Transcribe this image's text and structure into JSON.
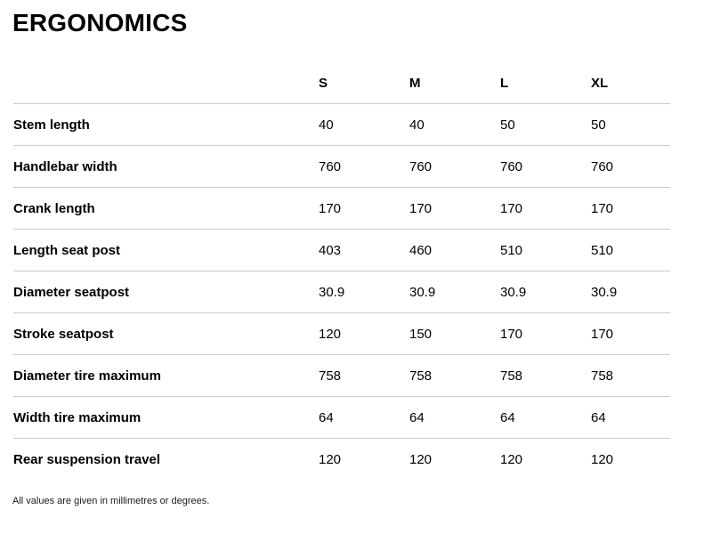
{
  "page": {
    "title": "ERGONOMICS",
    "footnote": "All values are given in millimetres or degrees."
  },
  "table": {
    "columns": [
      "S",
      "M",
      "L",
      "XL"
    ],
    "rows": [
      {
        "label": "Stem length",
        "values": [
          "40",
          "40",
          "50",
          "50"
        ]
      },
      {
        "label": "Handlebar width",
        "values": [
          "760",
          "760",
          "760",
          "760"
        ]
      },
      {
        "label": "Crank length",
        "values": [
          "170",
          "170",
          "170",
          "170"
        ]
      },
      {
        "label": "Length seat post",
        "values": [
          "403",
          "460",
          "510",
          "510"
        ]
      },
      {
        "label": "Diameter seatpost",
        "values": [
          "30.9",
          "30.9",
          "30.9",
          "30.9"
        ]
      },
      {
        "label": "Stroke seatpost",
        "values": [
          "120",
          "150",
          "170",
          "170"
        ]
      },
      {
        "label": "Diameter tire maximum",
        "values": [
          "758",
          "758",
          "758",
          "758"
        ]
      },
      {
        "label": "Width tire maximum",
        "values": [
          "64",
          "64",
          "64",
          "64"
        ]
      },
      {
        "label": "Rear suspension travel",
        "values": [
          "120",
          "120",
          "120",
          "120"
        ]
      }
    ]
  },
  "colors": {
    "text": "#000000",
    "divider": "#cccccc",
    "background": "#ffffff"
  }
}
